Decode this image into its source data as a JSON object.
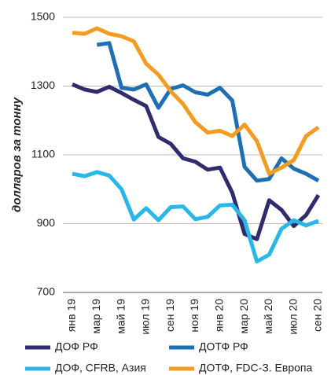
{
  "chart_data": {
    "type": "line",
    "y_label": "долларов за тонну",
    "categories": [
      "янв 19",
      null,
      "мар 19",
      null,
      "май 19",
      null,
      "июл 19",
      null,
      "сен 19",
      null,
      "ноя 19",
      null,
      "янв 20",
      null,
      "мар 20",
      null,
      "май 20",
      null,
      "июл 20",
      null,
      "сен 20"
    ],
    "ylim": [
      700,
      1500
    ],
    "yticks": [
      700,
      900,
      1100,
      1300,
      1500
    ],
    "grid": true,
    "series": [
      {
        "name": "ДОФ РФ",
        "color": "#2e2c6e",
        "values": [
          1305,
          1290,
          1283,
          1298,
          1280,
          1260,
          1242,
          1152,
          1132,
          1090,
          1080,
          1057,
          1063,
          990,
          870,
          855,
          968,
          940,
          893,
          925,
          983
        ]
      },
      {
        "name": "ДОТФ РФ",
        "color": "#1f6fb5",
        "values": [
          null,
          null,
          1420,
          1425,
          1295,
          1290,
          1305,
          1237,
          1292,
          1302,
          1282,
          1275,
          1295,
          1258,
          1065,
          1025,
          1030,
          1090,
          1060,
          1045,
          1025
        ]
      },
      {
        "name": "ДОФ, CFRB, Азия",
        "color": "#29b6e8",
        "values": [
          1045,
          1038,
          1050,
          1040,
          1000,
          912,
          945,
          910,
          948,
          950,
          913,
          920,
          953,
          955,
          910,
          790,
          810,
          885,
          910,
          895,
          908
        ]
      },
      {
        "name": "ДОТФ, FDC-З. Европа",
        "color": "#f59b20",
        "values": [
          1455,
          1452,
          1468,
          1452,
          1445,
          1430,
          1365,
          1333,
          1285,
          1248,
          1195,
          1165,
          1170,
          1155,
          1188,
          1140,
          1045,
          1063,
          1085,
          1155,
          1180
        ]
      }
    ]
  }
}
